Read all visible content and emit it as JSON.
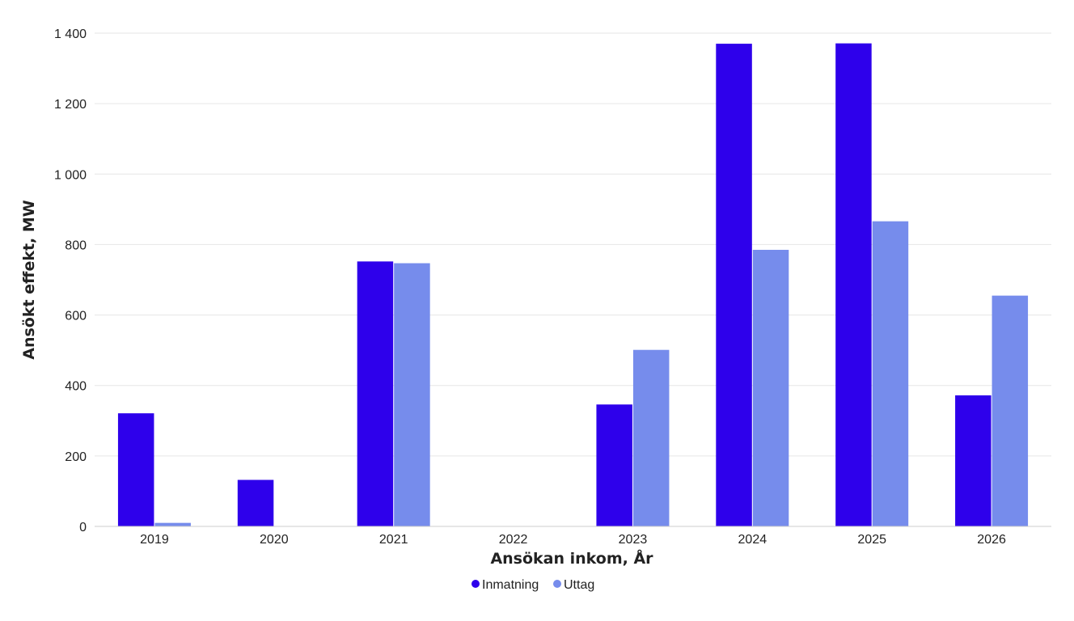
{
  "chart_data": {
    "type": "bar",
    "categories": [
      "2019",
      "2020",
      "2021",
      "2022",
      "2023",
      "2024",
      "2025",
      "2026"
    ],
    "series": [
      {
        "name": "Inmatning",
        "color": "#2e00eb",
        "values": [
          321,
          132,
          752,
          0,
          346,
          1370,
          1371,
          372
        ]
      },
      {
        "name": "Uttag",
        "color": "#768cec",
        "values": [
          10,
          0,
          747,
          0,
          501,
          785,
          866,
          655
        ]
      }
    ],
    "xlabel": "Ansökan inkom, År",
    "ylabel": "Ansökt effekt, MW",
    "ylim": [
      0,
      1400
    ],
    "yticks": [
      0,
      200,
      400,
      600,
      800,
      1000,
      1200,
      1400
    ],
    "ytick_labels": [
      "0",
      "200",
      "400",
      "600",
      "800",
      "1 000",
      "1 200",
      "1 400"
    ],
    "grid": true,
    "legend_position": "bottom-center"
  }
}
